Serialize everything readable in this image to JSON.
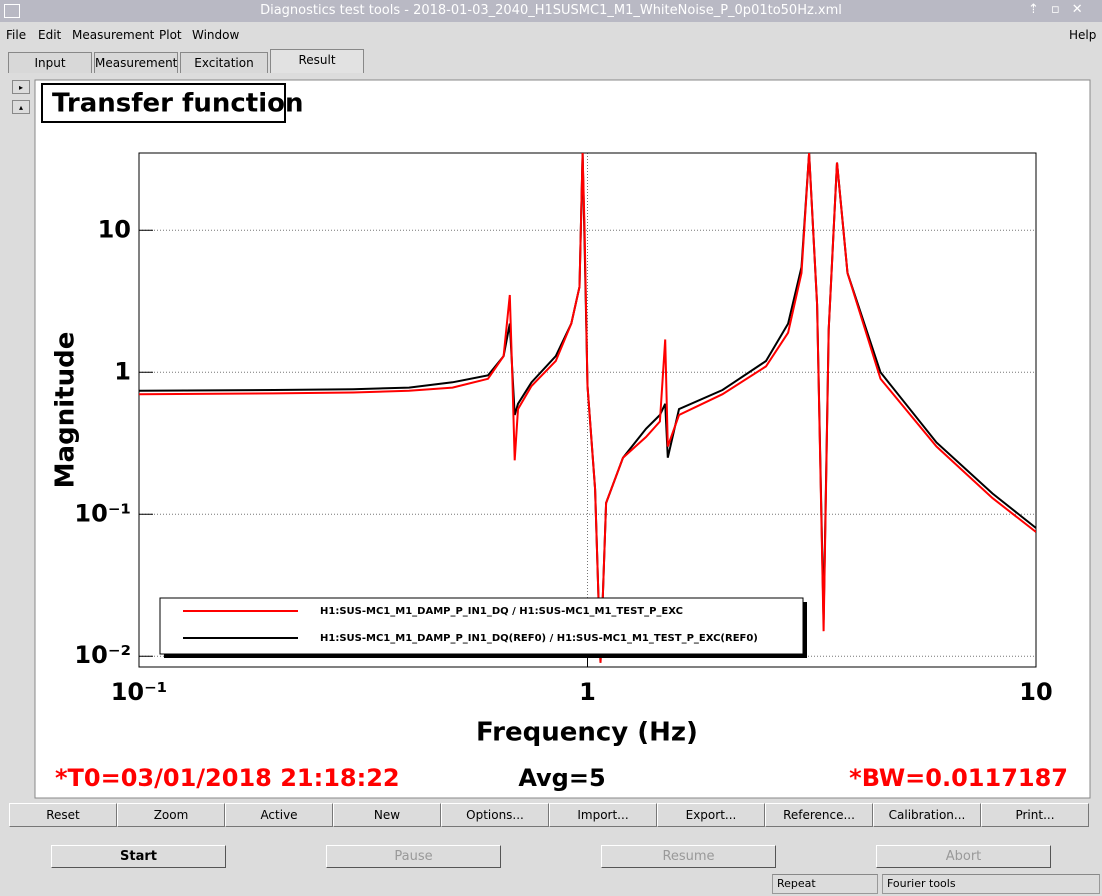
{
  "window": {
    "title": "Diagnostics test tools - 2018-01-03_2040_H1SUSMC1_M1_WhiteNoise_P_0p01to50Hz.xml"
  },
  "menu": [
    "File",
    "Edit",
    "Measurement",
    "Plot",
    "Window",
    "Help"
  ],
  "tabs": [
    "Input",
    "Measurement",
    "Excitation",
    "Result"
  ],
  "chart_data": {
    "type": "line",
    "title": "Transfer function",
    "x_label": "Frequency (Hz)",
    "y_label": "Magnitude",
    "x": [
      0.1,
      0.2,
      0.3,
      0.4,
      0.5,
      0.6,
      0.65,
      0.671,
      0.68,
      0.688,
      0.7,
      0.75,
      0.85,
      0.92,
      0.96,
      0.975,
      0.985,
      1.0,
      1.04,
      1.069,
      1.1,
      1.2,
      1.35,
      1.45,
      1.49,
      1.51,
      1.6,
      2.0,
      2.5,
      2.8,
      3.0,
      3.12,
      3.25,
      3.36,
      3.45,
      3.6,
      3.8,
      4.5,
      6,
      8,
      10
    ],
    "series": [
      {
        "name": "H1:SUS-MC1_M1_DAMP_P_IN1_DQ / H1:SUS-MC1_M1_TEST_P_EXC",
        "color": "#ff0000",
        "values": [
          0.7,
          0.71,
          0.72,
          0.74,
          0.78,
          0.9,
          1.3,
          3.5,
          0.9,
          0.24,
          0.55,
          0.8,
          1.2,
          2.2,
          4,
          35,
          10,
          0.8,
          0.15,
          0.009,
          0.12,
          0.25,
          0.35,
          0.45,
          1.7,
          0.3,
          0.5,
          0.7,
          1.1,
          1.9,
          5,
          35,
          3,
          0.015,
          2,
          30,
          5,
          0.9,
          0.3,
          0.13,
          0.075
        ]
      },
      {
        "name": "H1:SUS-MC1_M1_DAMP_P_IN1_DQ(REF0) / H1:SUS-MC1_M1_TEST_P_EXC(REF0)",
        "color": "#000000",
        "values": [
          0.74,
          0.75,
          0.76,
          0.78,
          0.85,
          0.95,
          1.3,
          2.2,
          1.0,
          0.5,
          0.6,
          0.85,
          1.3,
          2.2,
          4,
          35,
          8,
          0.8,
          0.15,
          0.009,
          0.12,
          0.25,
          0.4,
          0.5,
          0.6,
          0.25,
          0.55,
          0.75,
          1.2,
          2.2,
          5.5,
          35,
          3,
          0.018,
          2,
          30,
          5,
          1.0,
          0.32,
          0.14,
          0.08
        ]
      }
    ],
    "xlim": [
      0.1,
      10
    ],
    "ylim": [
      0.0084,
      35
    ],
    "xticks": [
      {
        "value": 0.1,
        "label": "10⁻¹"
      },
      1,
      10
    ],
    "yticks": [
      {
        "value": 0.01,
        "label": "10⁻²"
      },
      {
        "value": 0.1,
        "label": "10⁻¹"
      },
      1,
      10
    ],
    "xscale": "log",
    "yscale": "log",
    "grid": true
  },
  "status": {
    "t0": "*T0=03/01/2018 21:18:22",
    "avg": "Avg=5",
    "bw": "*BW=0.0117187"
  },
  "plot_buttons": [
    "Reset",
    "Zoom",
    "Active",
    "New",
    "Options...",
    "Import...",
    "Export...",
    "Reference...",
    "Calibration...",
    "Print..."
  ],
  "run_buttons": [
    "Start",
    "Pause",
    "Resume",
    "Abort"
  ],
  "status_bar": [
    "Repeat",
    "Fourier tools"
  ]
}
